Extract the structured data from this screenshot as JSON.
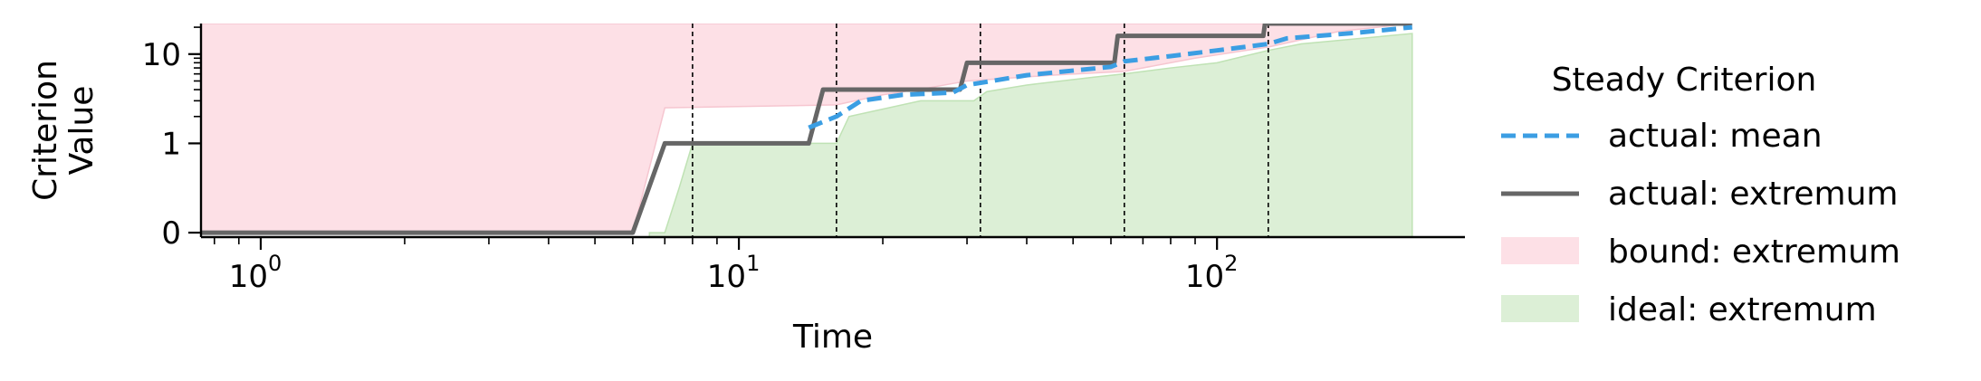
{
  "chart_data": {
    "type": "line",
    "xlabel": "Time",
    "ylabel": "Criterion\nValue",
    "xscale": "log",
    "yscale": "symlog",
    "xlim": [
      0.75,
      330
    ],
    "ylim": [
      -0.05,
      22
    ],
    "x_ticks": [
      {
        "value": 1,
        "label": "10",
        "exp": "0"
      },
      {
        "value": 10,
        "label": "10",
        "exp": "1"
      },
      {
        "value": 100,
        "label": "10",
        "exp": "2"
      }
    ],
    "y_ticks": [
      {
        "value": 0,
        "label": "0"
      },
      {
        "value": 1,
        "label": "1"
      },
      {
        "value": 10,
        "label": "10"
      }
    ],
    "vlines": [
      8,
      16,
      32,
      64,
      128
    ],
    "legend": {
      "title": "Steady Criterion",
      "position": "right",
      "entries": [
        {
          "label": "actual: mean",
          "kind": "dashed-line",
          "color": "#3b9ee3"
        },
        {
          "label": "actual: extremum",
          "kind": "line",
          "color": "#666666"
        },
        {
          "label": "bound: extremum",
          "kind": "patch",
          "color": "#fde0e6"
        },
        {
          "label": "ideal: extremum",
          "kind": "patch",
          "color": "#dcefd6"
        }
      ]
    },
    "series": [
      {
        "name": "bound: extremum",
        "kind": "area-above",
        "color": "#fde0e6",
        "points": [
          [
            0.75,
            0
          ],
          [
            6,
            0
          ],
          [
            7,
            2.5
          ],
          [
            16,
            2.7
          ],
          [
            20,
            3.5
          ],
          [
            25,
            4.2
          ],
          [
            30,
            5
          ],
          [
            45,
            5.8
          ],
          [
            64,
            6.4
          ],
          [
            90,
            9
          ],
          [
            128,
            12
          ],
          [
            180,
            18
          ],
          [
            256,
            22
          ]
        ]
      },
      {
        "name": "ideal: extremum",
        "kind": "area-below",
        "color": "#dcefd6",
        "points": [
          [
            6.5,
            0
          ],
          [
            7,
            0
          ],
          [
            7.5,
            0.5
          ],
          [
            8,
            1
          ],
          [
            16,
            1
          ],
          [
            17,
            2
          ],
          [
            24,
            3
          ],
          [
            31,
            3
          ],
          [
            33,
            3.8
          ],
          [
            40,
            4.5
          ],
          [
            55,
            5.5
          ],
          [
            64,
            6
          ],
          [
            80,
            7
          ],
          [
            100,
            8
          ],
          [
            128,
            11
          ],
          [
            150,
            13
          ],
          [
            200,
            15
          ],
          [
            256,
            17
          ]
        ]
      },
      {
        "name": "actual: extremum",
        "kind": "step-line",
        "color": "#666666",
        "points": [
          [
            0.75,
            0
          ],
          [
            6,
            0
          ],
          [
            7,
            1
          ],
          [
            14,
            1
          ],
          [
            15,
            4
          ],
          [
            29,
            4
          ],
          [
            30,
            8
          ],
          [
            61,
            8
          ],
          [
            62,
            16
          ],
          [
            125,
            16
          ],
          [
            126,
            22
          ],
          [
            256,
            22
          ]
        ]
      },
      {
        "name": "actual: mean",
        "kind": "dashed-line",
        "color": "#3b9ee3",
        "points": [
          [
            14,
            1.5
          ],
          [
            16,
            2
          ],
          [
            18,
            3
          ],
          [
            22,
            3.5
          ],
          [
            28,
            3.7
          ],
          [
            30,
            4.5
          ],
          [
            40,
            5.8
          ],
          [
            60,
            7.2
          ],
          [
            64,
            8.3
          ],
          [
            80,
            9.5
          ],
          [
            100,
            11
          ],
          [
            128,
            13
          ],
          [
            140,
            15
          ],
          [
            200,
            17.5
          ],
          [
            256,
            20
          ]
        ]
      }
    ]
  }
}
